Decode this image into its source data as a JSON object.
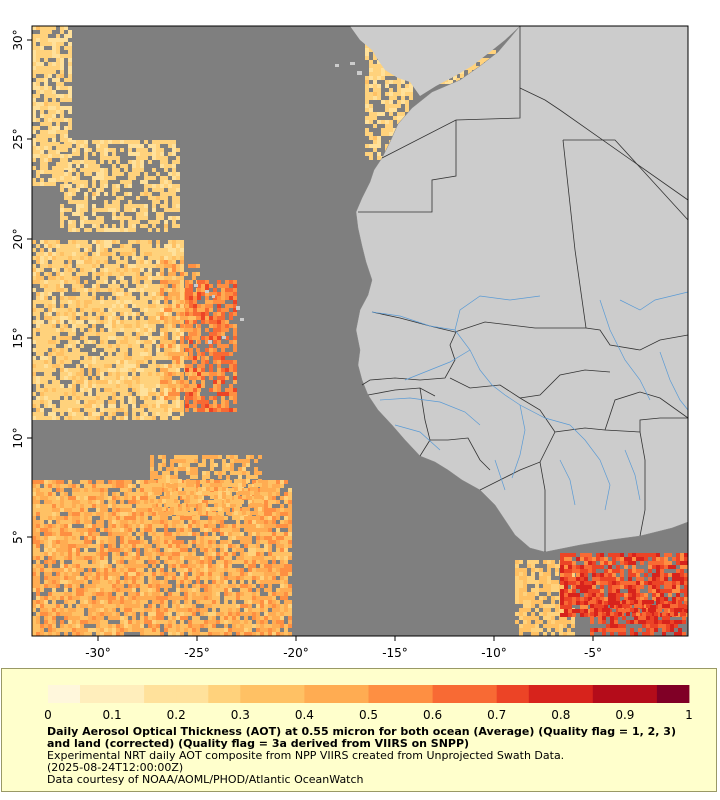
{
  "map": {
    "x_ticks": [
      "-30°",
      "-25°",
      "-20°",
      "-15°",
      "-10°",
      "-5°"
    ],
    "y_ticks": [
      "30°",
      "25°",
      "20°",
      "15°",
      "10°",
      "5°"
    ],
    "colors": {
      "ocean_no_data": "#7f7f7f",
      "land": "#cccccc",
      "borders": "#333333",
      "rivers": "#4a90d9"
    }
  },
  "legend": {
    "ticks": [
      "0",
      "0.1",
      "0.2",
      "0.3",
      "0.4",
      "0.5",
      "0.6",
      "0.7",
      "0.8",
      "0.9",
      "1"
    ],
    "colormap": [
      "#fff7dc",
      "#ffeebc",
      "#ffe19b",
      "#ffd27c",
      "#ffc164",
      "#ffac52",
      "#fe8f42",
      "#f86a34",
      "#ec4426",
      "#d7231c",
      "#b40c1a",
      "#800026"
    ],
    "title": "Daily Aerosol Optical Thickness (AOT) at 0.55 micron for both ocean (Average) (Quality flag = 1, 2, 3) and land (corrected) (Quality flag = 3a derived from VIIRS on SNPP)",
    "line1": "Experimental NRT daily AOT composite from NPP VIIRS created from Unprojected Swath Data.",
    "line2": "(2025-08-24T12:00:00Z)",
    "line3": "Data courtesy of NOAA/AOML/PHOD/Atlantic OceanWatch"
  }
}
